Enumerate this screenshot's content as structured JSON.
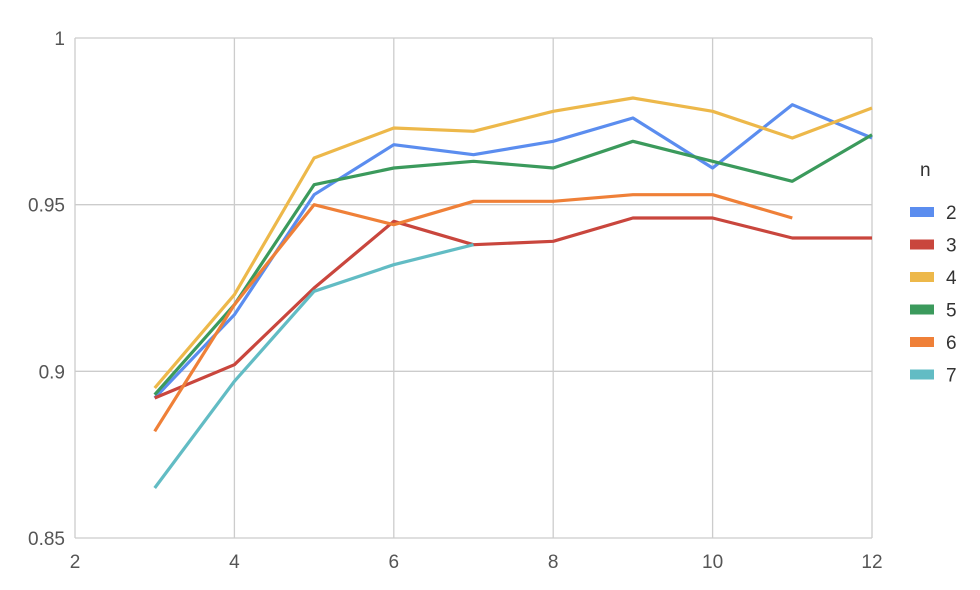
{
  "chart_data": {
    "type": "line",
    "title": "",
    "xlabel": "",
    "ylabel": "",
    "xlim": [
      2,
      12
    ],
    "ylim": [
      0.85,
      1
    ],
    "x_ticks": [
      2,
      4,
      6,
      8,
      10,
      12
    ],
    "y_ticks": [
      0.85,
      0.9,
      0.95,
      1
    ],
    "x_tick_labels": [
      "2",
      "4",
      "6",
      "8",
      "10",
      "12"
    ],
    "y_tick_labels": [
      "0.85",
      "0.9",
      "0.95",
      "1"
    ],
    "grid": true,
    "legend": {
      "title": "n",
      "position": "right"
    },
    "series": [
      {
        "name": "2",
        "color": "#5b8def",
        "x": [
          3,
          4,
          5,
          6,
          7,
          8,
          9,
          10,
          11,
          12
        ],
        "y": [
          0.892,
          0.917,
          0.953,
          0.968,
          0.965,
          0.969,
          0.976,
          0.961,
          0.98,
          0.97
        ]
      },
      {
        "name": "3",
        "color": "#c9463d",
        "x": [
          3,
          4,
          5,
          6,
          7,
          8,
          9,
          10,
          11,
          12
        ],
        "y": [
          0.892,
          0.902,
          0.925,
          0.945,
          0.938,
          0.939,
          0.946,
          0.946,
          0.94,
          0.94
        ]
      },
      {
        "name": "4",
        "color": "#edb84a",
        "x": [
          3,
          4,
          5,
          6,
          7,
          8,
          9,
          10,
          11,
          12
        ],
        "y": [
          0.895,
          0.923,
          0.964,
          0.973,
          0.972,
          0.978,
          0.982,
          0.978,
          0.97,
          0.979
        ]
      },
      {
        "name": "5",
        "color": "#3b9a5c",
        "x": [
          3,
          4,
          5,
          6,
          7,
          8,
          9,
          10,
          11,
          12
        ],
        "y": [
          0.893,
          0.92,
          0.956,
          0.961,
          0.963,
          0.961,
          0.969,
          0.963,
          0.957,
          0.971
        ]
      },
      {
        "name": "6",
        "color": "#ef8038",
        "x": [
          3,
          4,
          5,
          6,
          7,
          8,
          9,
          10,
          11
        ],
        "y": [
          0.882,
          0.92,
          0.95,
          0.944,
          0.951,
          0.951,
          0.953,
          0.953,
          0.946
        ]
      },
      {
        "name": "7",
        "color": "#62bcc4",
        "x": [
          3,
          4,
          5,
          6,
          7
        ],
        "y": [
          0.865,
          0.897,
          0.924,
          0.932,
          0.938
        ]
      }
    ]
  }
}
